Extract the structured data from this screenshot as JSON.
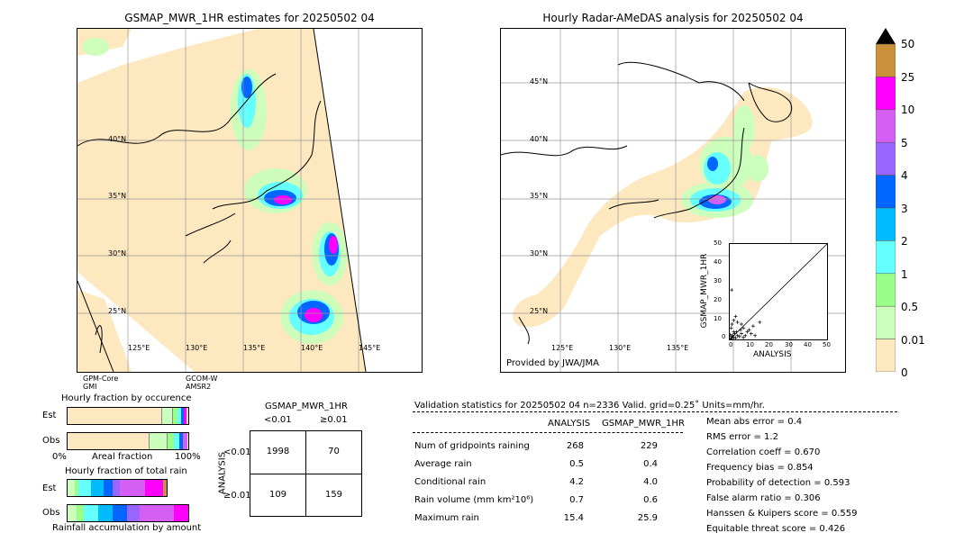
{
  "left_map": {
    "title": "GSMAP_MWR_1HR estimates for 20250502 04",
    "lat_labels": [
      "40°N",
      "35°N",
      "30°N",
      "25°N"
    ],
    "lon_labels": [
      "125°E",
      "130°E",
      "135°E",
      "140°E",
      "145°E"
    ],
    "satellites": [
      "GPM-Core\nGMI",
      "GCOM-W\nAMSR2"
    ]
  },
  "right_map": {
    "title": "Hourly Radar-AMeDAS analysis for 20250502 04",
    "lat_labels": [
      "45°N",
      "40°N",
      "35°N",
      "30°N",
      "25°N"
    ],
    "lon_labels": [
      "125°E",
      "130°E",
      "135°E"
    ],
    "credit": "Provided by JWA/JMA"
  },
  "scatter": {
    "xlabel": "ANALYSIS",
    "ylabel": "GSMAP_MWR_1HR",
    "ticks": [
      "0",
      "10",
      "20",
      "30",
      "40",
      "50"
    ]
  },
  "colorbar": {
    "labels": [
      "50",
      "25",
      "10",
      "5",
      "4",
      "3",
      "2",
      "1",
      "0.5",
      "0.01",
      "0"
    ],
    "colors": [
      "#c8913a",
      "#ff00ff",
      "#d55ef5",
      "#9966ff",
      "#0066ff",
      "#00bbff",
      "#66ffff",
      "#99ff88",
      "#ccffbb",
      "#fde8c0"
    ]
  },
  "occurrence": {
    "title": "Hourly fraction by occurence",
    "rows": [
      "Est",
      "Obs"
    ],
    "axis_left": "0%",
    "axis_mid": "Areal fraction",
    "axis_right": "100%"
  },
  "total_rain": {
    "title": "Hourly fraction of total rain",
    "rows": [
      "Est",
      "Obs"
    ],
    "footer": "Rainfall accumulation by amount"
  },
  "contingency": {
    "col_title": "GSMAP_MWR_1HR",
    "col_lt": "<0.01",
    "col_ge": "≥0.01",
    "row_title": "ANALYSIS",
    "row_lt": "<0.01",
    "row_ge": "≥0.01",
    "cells": [
      "1998",
      "70",
      "109",
      "159"
    ]
  },
  "validation": {
    "header": "Validation statistics for 20250502 04  n=2336 Valid. grid=0.25˚ Units=mm/hr.",
    "col_analysis": "ANALYSIS",
    "col_gsmap": "GSMAP_MWR_1HR",
    "rows": [
      {
        "label": "Num of gridpoints raining",
        "analysis": "268",
        "gsmap": "229"
      },
      {
        "label": "Average rain",
        "analysis": "0.5",
        "gsmap": "0.4"
      },
      {
        "label": "Conditional rain",
        "analysis": "4.2",
        "gsmap": "4.0"
      },
      {
        "label": "Rain volume (mm km²10⁶)",
        "analysis": "0.7",
        "gsmap": "0.6"
      },
      {
        "label": "Maximum rain",
        "analysis": "15.4",
        "gsmap": "25.9"
      }
    ],
    "scores": [
      "Mean abs error =    0.4",
      "RMS error =    1.2",
      "Correlation coeff =  0.670",
      "Frequency bias =  0.854",
      "Probability of detection =  0.593",
      "False alarm ratio =  0.306",
      "Hanssen & Kuipers score =  0.559",
      "Equitable threat score =  0.426"
    ]
  },
  "chart_data": {
    "type": "scatter",
    "xlabel": "ANALYSIS",
    "ylabel": "GSMAP_MWR_1HR",
    "xlim": [
      0,
      50
    ],
    "ylim": [
      0,
      50
    ],
    "points": [
      [
        0.5,
        0.3
      ],
      [
        1,
        0.5
      ],
      [
        1.5,
        2
      ],
      [
        2,
        1
      ],
      [
        2.5,
        3
      ],
      [
        3,
        0.8
      ],
      [
        3.5,
        4
      ],
      [
        4,
        2
      ],
      [
        5,
        1.5
      ],
      [
        5.5,
        5
      ],
      [
        6,
        3
      ],
      [
        7,
        6
      ],
      [
        8,
        2
      ],
      [
        9,
        4
      ],
      [
        10,
        5
      ],
      [
        11,
        3
      ],
      [
        12,
        7
      ],
      [
        13,
        2
      ],
      [
        15.4,
        9
      ],
      [
        0.8,
        6
      ],
      [
        1.2,
        8
      ],
      [
        2,
        10
      ],
      [
        3,
        12
      ],
      [
        1,
        25.9
      ],
      [
        4,
        9
      ],
      [
        6,
        8
      ],
      [
        7,
        1
      ],
      [
        2,
        4
      ],
      [
        1,
        1.5
      ],
      [
        0.3,
        2.5
      ]
    ]
  }
}
